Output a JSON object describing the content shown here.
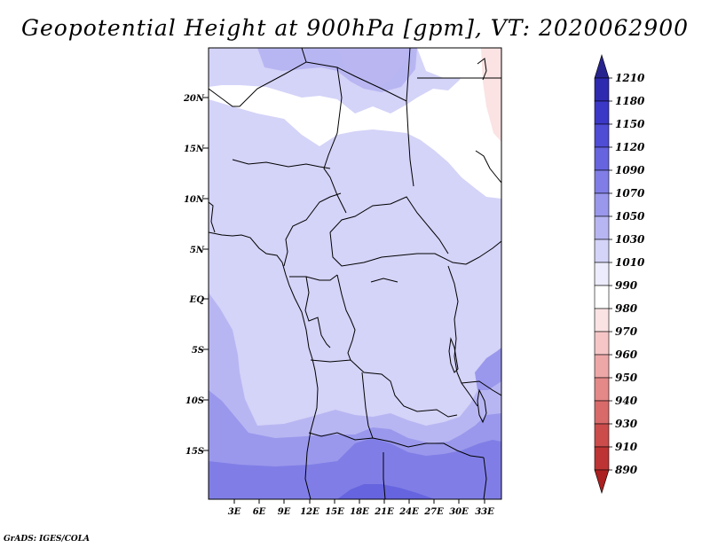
{
  "title": "Geopotential Height at 900hPa [gpm], VT: 2020062900",
  "credit": "GrADS: IGES/COLA",
  "map": {
    "lat_ticks": [
      "20N",
      "15N",
      "10N",
      "5N",
      "EQ",
      "5S",
      "10S",
      "15S"
    ],
    "lon_ticks": [
      "3E",
      "6E",
      "9E",
      "12E",
      "15E",
      "18E",
      "21E",
      "24E",
      "27E",
      "30E",
      "33E"
    ]
  },
  "colorbar": {
    "levels": [
      "1210",
      "1180",
      "1150",
      "1120",
      "1090",
      "1070",
      "1050",
      "1030",
      "1010",
      "990",
      "980",
      "970",
      "960",
      "950",
      "940",
      "930",
      "910",
      "890"
    ],
    "colors": [
      "#28248e",
      "#2e2ab0",
      "#3b38c8",
      "#4f4cd6",
      "#6664df",
      "#807ee6",
      "#9a98ec",
      "#b8b6f2",
      "#d4d3f8",
      "#ececfc",
      "#ffffff",
      "#fbe3e3",
      "#f6c6c6",
      "#eea7a7",
      "#e48888",
      "#d96a6a",
      "#cc4c4c",
      "#be3434",
      "#ab2020"
    ]
  }
}
